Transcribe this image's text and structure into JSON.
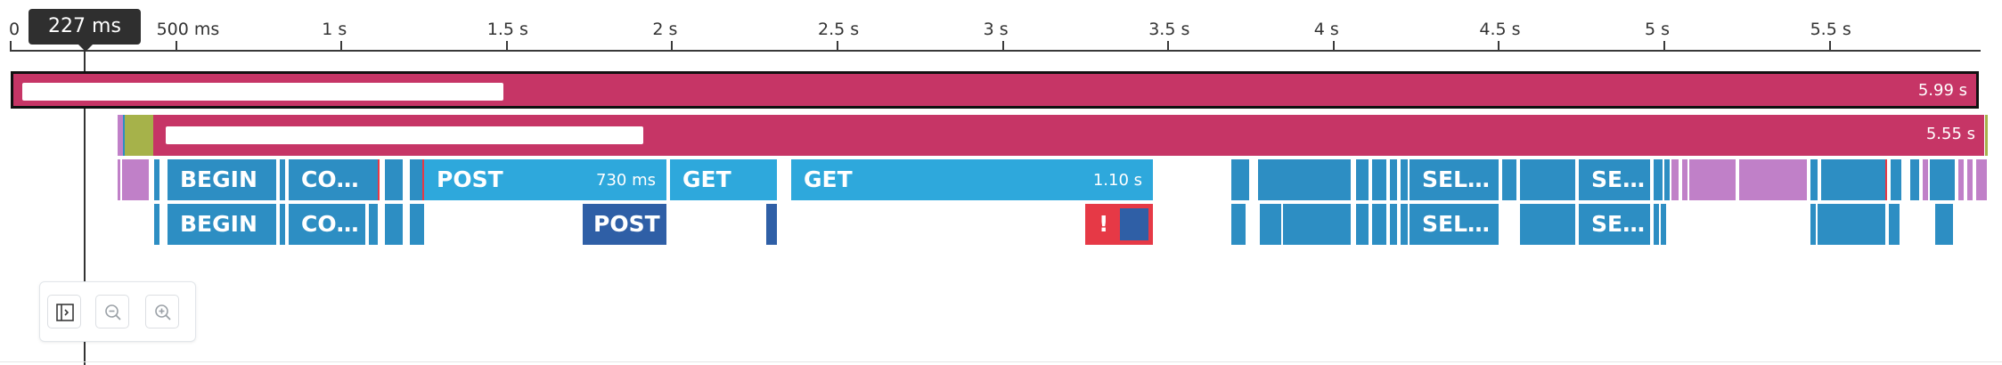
{
  "axis": {
    "ticks": [
      {
        "label": "0",
        "ms": 0
      },
      {
        "label": "500 ms",
        "ms": 500
      },
      {
        "label": "1 s",
        "ms": 1000
      },
      {
        "label": "1.5 s",
        "ms": 1500
      },
      {
        "label": "2 s",
        "ms": 2000
      },
      {
        "label": "2.5 s",
        "ms": 2500
      },
      {
        "label": "3 s",
        "ms": 3000
      },
      {
        "label": "3.5 s",
        "ms": 3500
      },
      {
        "label": "4 s",
        "ms": 4000
      },
      {
        "label": "4.5 s",
        "ms": 4500
      },
      {
        "label": "5 s",
        "ms": 5000
      },
      {
        "label": "5.5 s",
        "ms": 5500
      }
    ]
  },
  "cursor": {
    "label": "227 ms",
    "ms": 227
  },
  "spans": {
    "root": {
      "duration": "5.99 s"
    },
    "child": {
      "duration": "5.55 s"
    }
  },
  "row3": {
    "begin": "BEGIN",
    "co": "CO…",
    "post": "POST",
    "post_duration": "730 ms",
    "get1": "GET",
    "get2": "GET",
    "get2_duration": "1.10 s",
    "sel": "SEL…",
    "se": "SE…"
  },
  "row4": {
    "begin": "BEGIN",
    "co": "CO…",
    "post": "POST",
    "error_mark": "!",
    "sel": "SEL…",
    "se": "SE…"
  },
  "colors": {
    "span": "#c63566",
    "blue": "#2d8ec3",
    "light_blue": "#2ea8dc",
    "navy": "#2f5fa6",
    "purple": "#c080c8",
    "olive": "#a6b24a",
    "error": "#e63946"
  },
  "toolbar": {
    "icons": [
      "sidebar-toggle-icon",
      "zoom-out-icon",
      "zoom-in-icon"
    ]
  }
}
